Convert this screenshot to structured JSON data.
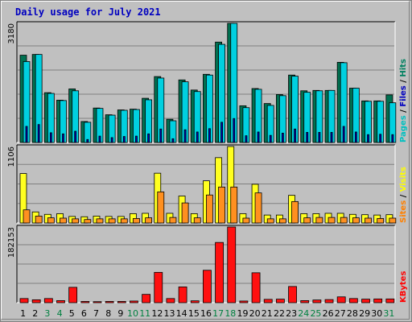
{
  "chart_data": {
    "title": "Daily usage for July 2021",
    "type": "bar",
    "categories": [
      "1",
      "2",
      "3",
      "4",
      "5",
      "6",
      "7",
      "8",
      "9",
      "10",
      "11",
      "12",
      "13",
      "14",
      "15",
      "16",
      "17",
      "18",
      "19",
      "20",
      "21",
      "22",
      "23",
      "24",
      "25",
      "26",
      "27",
      "28",
      "29",
      "30",
      "31"
    ],
    "weekend_days": [
      "3",
      "4",
      "10",
      "11",
      "17",
      "18",
      "24",
      "25",
      "31"
    ],
    "weekend_label_color": "#008040",
    "weekday_label_color": "#000000",
    "panels": [
      {
        "name": "hits-files-pages",
        "ymax_label": "3180",
        "ymax": 3180,
        "right_labels": [
          {
            "text": "Pages",
            "color": "#00c0c0"
          },
          {
            "text": " / ",
            "color": "#000000"
          },
          {
            "text": "Files",
            "color": "#0000c0"
          },
          {
            "text": " / ",
            "color": "#000000"
          },
          {
            "text": "Hits",
            "color": "#008060"
          }
        ],
        "series": [
          {
            "key": "hits",
            "color": "#007050",
            "values": [
              2330,
              2350,
              1330,
              1130,
              1430,
              560,
              920,
              740,
              870,
              890,
              1180,
              1760,
              620,
              1670,
              1400,
              1820,
              2680,
              3180,
              980,
              1440,
              1040,
              1280,
              1800,
              1380,
              1390,
              1390,
              2140,
              1450,
              1110,
              1110,
              1270
            ]
          },
          {
            "key": "files",
            "color": "#00d0e0",
            "values": [
              2160,
              2350,
              1310,
              1120,
              1380,
              540,
              910,
              730,
              860,
              880,
              1140,
              1720,
              580,
              1620,
              1360,
              1800,
              2620,
              3180,
              930,
              1420,
              990,
              1250,
              1770,
              1340,
              1380,
              1390,
              2130,
              1450,
              1100,
              1100,
              1060
            ]
          },
          {
            "key": "pages",
            "color": "#0000c0",
            "values": [
              430,
              480,
              260,
              230,
              300,
              80,
              170,
              130,
              160,
              170,
              230,
              360,
              100,
              340,
              280,
              370,
              540,
              640,
              180,
              280,
              190,
              250,
              360,
              270,
              270,
              270,
              430,
              280,
              210,
              220,
              210
            ]
          }
        ]
      },
      {
        "name": "visits-sites",
        "ymax_label": "1106",
        "ymax": 1106,
        "right_labels": [
          {
            "text": "Sites",
            "color": "#ff8000"
          },
          {
            "text": " / ",
            "color": "#000000"
          },
          {
            "text": "Visits",
            "color": "#ffff00"
          }
        ],
        "series": [
          {
            "key": "visits",
            "color": "#ffff20",
            "values": [
              715,
              160,
              125,
              135,
              95,
              90,
              100,
              95,
              95,
              135,
              140,
              720,
              140,
              390,
              135,
              610,
              945,
              1106,
              135,
              560,
              115,
              115,
              400,
              135,
              135,
              140,
              140,
              125,
              120,
              115,
              120
            ]
          },
          {
            "key": "sites",
            "color": "#ff9020",
            "values": [
              190,
              100,
              75,
              70,
              60,
              50,
              60,
              60,
              60,
              65,
              75,
              450,
              80,
              290,
              75,
              405,
              520,
              520,
              70,
              435,
              60,
              60,
              310,
              75,
              80,
              80,
              80,
              75,
              70,
              65,
              70
            ]
          }
        ]
      },
      {
        "name": "kbytes",
        "ymax_label": "182153",
        "ymax": 182153,
        "right_labels": [
          {
            "text": "KBytes",
            "color": "#ff0000"
          }
        ],
        "series": [
          {
            "key": "kbytes",
            "color": "#ff1010",
            "values": [
              10000,
              7000,
              10000,
              5000,
              37000,
              3000,
              2500,
              3000,
              3000,
              4000,
              20000,
              73000,
              10000,
              38000,
              4500,
              78000,
              145000,
              182153,
              4000,
              72000,
              8000,
              8500,
              39000,
              5000,
              6500,
              7500,
              14000,
              10000,
              8500,
              9000,
              9000
            ]
          }
        ]
      }
    ]
  }
}
